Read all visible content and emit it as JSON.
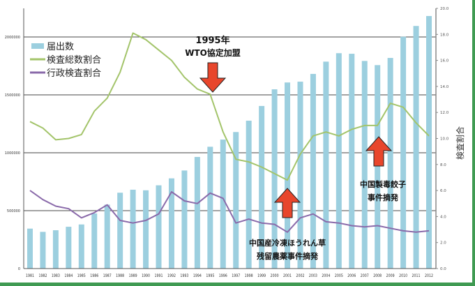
{
  "chart_data": {
    "type": "bar+line",
    "categories": [
      "1981",
      "1982",
      "1983",
      "1984",
      "1985",
      "1986",
      "1987",
      "1988",
      "1989",
      "1990",
      "1991",
      "1992",
      "1993",
      "1994",
      "1995",
      "1996",
      "1997",
      "1998",
      "1999",
      "2000",
      "2001",
      "2002",
      "2003",
      "2004",
      "2005",
      "2006",
      "2007",
      "2008",
      "2009",
      "2010",
      "2011",
      "2012"
    ],
    "series": [
      {
        "name": "届出数",
        "type": "bar",
        "axis": "left",
        "color": "#9ccfdf",
        "values": [
          345000,
          317000,
          331000,
          361000,
          381000,
          476000,
          552000,
          655000,
          681000,
          676000,
          719000,
          779000,
          847000,
          964000,
          1052000,
          1114000,
          1179000,
          1277000,
          1404000,
          1548000,
          1607000,
          1614000,
          1681000,
          1787000,
          1860000,
          1855000,
          1793000,
          1757000,
          1819000,
          2002000,
          2095000,
          2181000
        ]
      },
      {
        "name": "検査総数割合",
        "type": "line",
        "axis": "right",
        "color": "#a3c46a",
        "values": [
          11.3,
          10.8,
          9.9,
          10.0,
          10.3,
          12.1,
          13.1,
          15.1,
          18.1,
          17.6,
          16.8,
          16.0,
          14.7,
          13.8,
          13.4,
          10.5,
          8.4,
          8.2,
          7.8,
          7.3,
          6.8,
          8.8,
          10.2,
          10.5,
          10.2,
          10.7,
          11.0,
          11.0,
          12.7,
          12.4,
          11.2,
          10.2
        ]
      },
      {
        "name": "行政検査割合",
        "type": "line",
        "axis": "right",
        "color": "#8a6aaa",
        "values": [
          6.0,
          5.3,
          4.8,
          4.6,
          3.9,
          4.3,
          4.9,
          3.7,
          3.5,
          3.7,
          4.2,
          5.9,
          5.2,
          5.0,
          5.8,
          5.4,
          3.5,
          3.8,
          3.5,
          3.4,
          2.8,
          3.9,
          4.2,
          3.6,
          3.5,
          3.3,
          3.2,
          3.3,
          3.1,
          2.9,
          2.8,
          2.9
        ]
      }
    ],
    "left_axis": {
      "ylim": [
        0,
        2250000
      ],
      "ticks": [
        "0",
        "500000",
        "1000000",
        "1500000",
        "2000000"
      ],
      "tick_values": [
        0,
        500000,
        1000000,
        1500000,
        2000000
      ]
    },
    "right_axis": {
      "label": "検査割合",
      "ylim": [
        0,
        20
      ],
      "ticks": [
        "0.0",
        "2.0",
        "4.0",
        "6.0",
        "8.0",
        "10.0",
        "12.0",
        "14.0",
        "16.0",
        "18.0",
        "20.0"
      ],
      "tick_values": [
        0,
        2,
        4,
        6,
        8,
        10,
        12,
        14,
        16,
        18,
        20
      ]
    },
    "legend": {
      "placement": "top-left",
      "entries": [
        "届出数",
        "検査総数割合",
        "行政検査割合"
      ]
    },
    "grid": true,
    "annotations": [
      {
        "lines": [
          "1995年",
          "WTO協定加盟"
        ],
        "category": "1995",
        "arrow": "down"
      },
      {
        "lines": [
          "中国産冷凍ほうれん草",
          "残留農薬事件摘発"
        ],
        "category": "2001",
        "arrow": "up"
      },
      {
        "lines": [
          "中国製毒餃子",
          "事件摘発"
        ],
        "category": "2008",
        "arrow": "up"
      }
    ]
  }
}
